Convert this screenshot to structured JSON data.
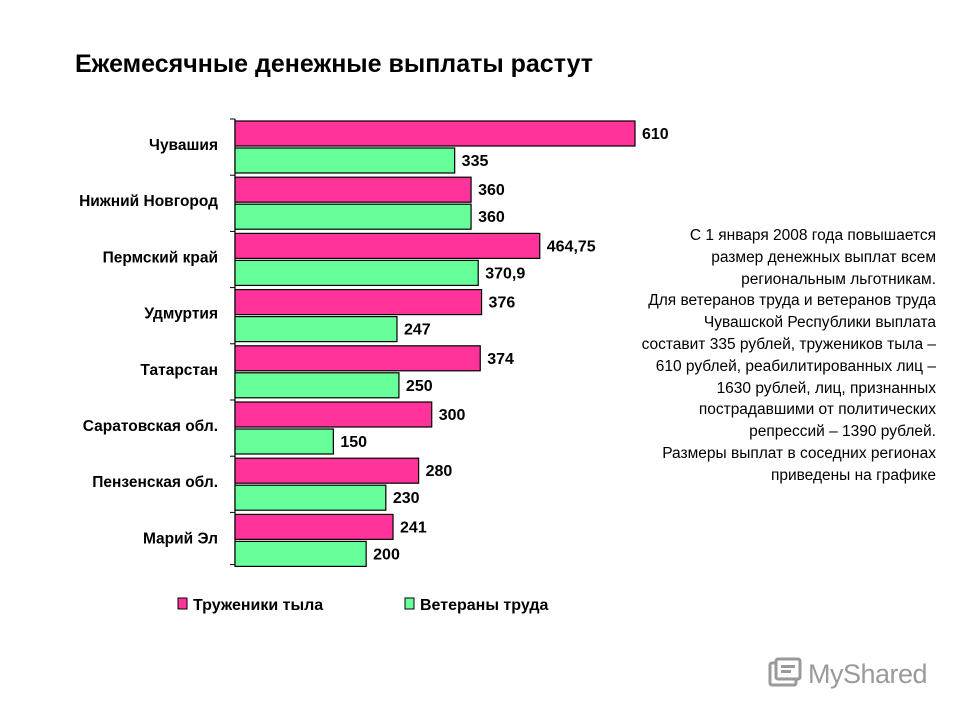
{
  "title": "Ежемесячные денежные выплаты растут",
  "note_lines": [
    "С 1 января 2008 года повышается",
    "размер денежных выплат всем",
    "региональным льготникам.",
    "Для ветеранов труда и ветеранов труда",
    "Чувашской Республики выплата",
    "составит 335 рублей, тружеников тыла –",
    "610 рублей, реабилитированных лиц –",
    "1630 рублей, лиц, признанных",
    "пострадавшими от политических",
    "репрессий – 1390 рублей.",
    "Размеры выплат в соседних регионах",
    "приведены на графике"
  ],
  "watermark": "MyShared",
  "chart_data": {
    "type": "bar",
    "orientation": "horizontal",
    "categories": [
      "Чувашия",
      "Нижний Новгород",
      "Пермский край",
      "Удмуртия",
      "Татарстан",
      "Саратовская обл.",
      "Пензенская обл.",
      "Марий Эл"
    ],
    "series": [
      {
        "name": "Труженики тыла",
        "color": "#ff3399",
        "values": [
          610,
          360,
          464.75,
          376,
          374,
          300,
          280,
          241
        ],
        "labels": [
          "610",
          "360",
          "464,75",
          "376",
          "374",
          "300",
          "280",
          "241"
        ]
      },
      {
        "name": "Ветераны труда",
        "color": "#66ff99",
        "values": [
          335,
          360,
          370.9,
          247,
          250,
          150,
          230,
          200
        ],
        "labels": [
          "335",
          "360",
          "370,9",
          "247",
          "250",
          "150",
          "230",
          "200"
        ]
      }
    ],
    "xlim": [
      0,
      610
    ],
    "legend_position": "bottom"
  }
}
